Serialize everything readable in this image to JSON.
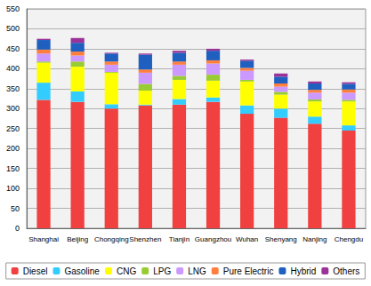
{
  "chart_data": {
    "type": "bar",
    "stacked": true,
    "grid": true,
    "legend": "bottom",
    "categories": [
      "Shanghai",
      "Beijing",
      "Chongqing",
      "Shenzhen",
      "Tianjin",
      "Guangzhou",
      "Wuhan",
      "Shenyang",
      "Nanjing",
      "Chengdu"
    ],
    "ylim": [
      0,
      550
    ],
    "yticks": [
      0,
      50,
      100,
      150,
      200,
      250,
      300,
      350,
      400,
      450,
      500,
      550
    ],
    "series": [
      {
        "name": "Diesel",
        "color": "#f04040",
        "values": [
          322,
          317,
          300,
          308,
          310,
          317,
          287,
          277,
          262,
          245
        ]
      },
      {
        "name": "Gasoline",
        "color": "#33ccff",
        "values": [
          43,
          26,
          11,
          2,
          14,
          11,
          21,
          23,
          18,
          13
        ]
      },
      {
        "name": "CNG",
        "color": "#ffff00",
        "values": [
          50,
          62,
          79,
          35,
          48,
          42,
          60,
          35,
          38,
          60
        ]
      },
      {
        "name": "LPG",
        "color": "#99cc33",
        "values": [
          3,
          13,
          2,
          17,
          10,
          15,
          4,
          7,
          5,
          4
        ]
      },
      {
        "name": "LNG",
        "color": "#cc99ff",
        "values": [
          20,
          15,
          18,
          28,
          28,
          28,
          23,
          13,
          17,
          18
        ]
      },
      {
        "name": "Pure Electric",
        "color": "#ff7f3f",
        "values": [
          10,
          10,
          8,
          8,
          8,
          8,
          7,
          8,
          7,
          8
        ]
      },
      {
        "name": "Hybrid",
        "color": "#1f5fbf",
        "values": [
          24,
          22,
          20,
          37,
          22,
          24,
          18,
          17,
          16,
          14
        ]
      },
      {
        "name": "Others",
        "color": "#993399",
        "values": [
          3,
          12,
          2,
          3,
          5,
          5,
          3,
          8,
          5,
          4
        ]
      }
    ]
  }
}
